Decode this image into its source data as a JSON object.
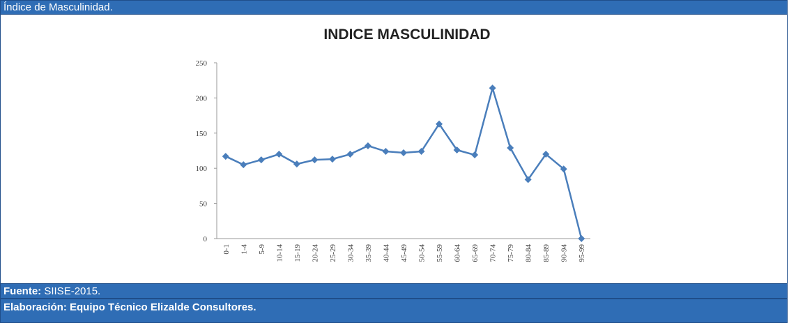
{
  "header": {
    "title": "Índice de Masculinidad."
  },
  "chart_data": {
    "type": "line",
    "title": "INDICE MASCULINIDAD",
    "categories": [
      "0-1",
      "1-4",
      "5-9",
      "10-14",
      "15-19",
      "20-24",
      "25-29",
      "30-34",
      "35-39",
      "40-44",
      "45-49",
      "50-54",
      "55-59",
      "60-64",
      "65-69",
      "70-74",
      "75-79",
      "80-84",
      "85-89",
      "90-94",
      "95-99"
    ],
    "series": [
      {
        "name": "Índice",
        "color": "#4a7ebb",
        "values": [
          117,
          105,
          112,
          120,
          106,
          112,
          113,
          120,
          132,
          124,
          122,
          124,
          163,
          126,
          119,
          214,
          129,
          84,
          120,
          99,
          0
        ]
      }
    ],
    "ylim": [
      0,
      250
    ],
    "yticks": [
      0,
      50,
      100,
      150,
      200,
      250
    ],
    "grid": false
  },
  "footer": {
    "source_label": "Fuente:",
    "source": "SIISE-2015.",
    "credit": "Elaboración: Equipo Técnico Elizalde Consultores."
  }
}
